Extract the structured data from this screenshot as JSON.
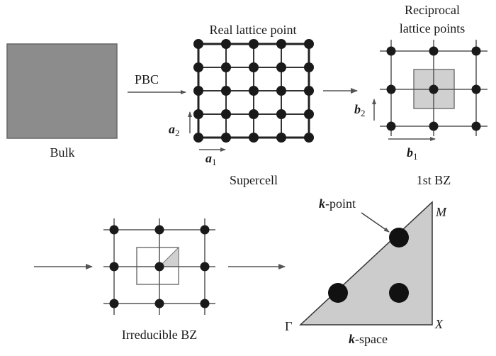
{
  "labels": {
    "bulk": "Bulk",
    "pbc": "PBC",
    "real_lattice_point": "Real lattice point",
    "reciprocal_line1": "Reciprocal",
    "reciprocal_line2": "lattice points",
    "supercell": "Supercell",
    "first_bz": "1st BZ",
    "irreducible_bz": "Irreducible BZ",
    "k_point_k": "k",
    "k_point_rest": "-point",
    "k_space_k": "k",
    "k_space_rest": "-space",
    "gamma": "Γ",
    "m": "M",
    "x": "X",
    "a_sym": "a",
    "a1_sub": "1",
    "a2_sub": "2",
    "b_sym": "b",
    "b1_sub": "1",
    "b2_sub": "2"
  },
  "colors": {
    "bulk_fill": "#8c8c8c",
    "lattice_node": "#1a1a1a",
    "lines": "#555555",
    "bz_fill": "#d0d0d0",
    "kspace_fill": "#cccccc"
  }
}
